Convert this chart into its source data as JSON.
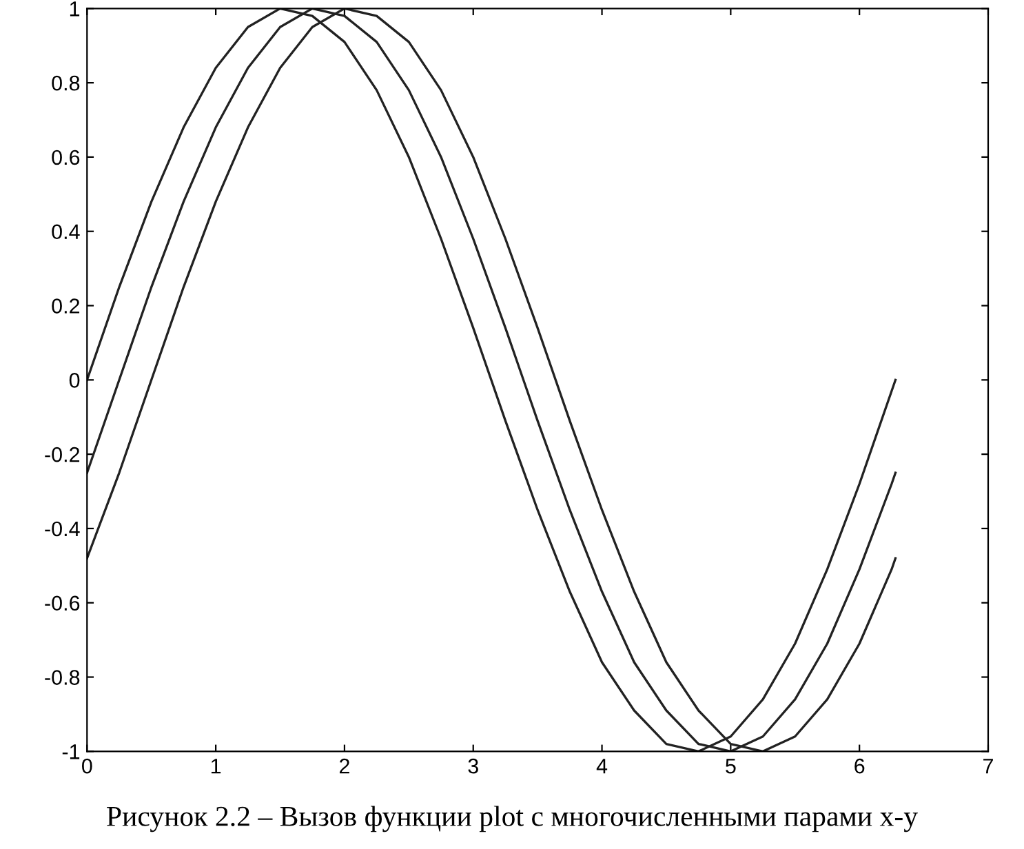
{
  "chart_data": {
    "type": "line",
    "x": [
      0,
      0.25,
      0.5,
      0.75,
      1.0,
      1.25,
      1.5,
      1.75,
      2.0,
      2.25,
      2.5,
      2.75,
      3.0,
      3.25,
      3.5,
      3.75,
      4.0,
      4.25,
      4.5,
      4.75,
      5.0,
      5.25,
      5.5,
      5.75,
      6.0,
      6.25,
      6.28
    ],
    "series": [
      {
        "color": "#222222",
        "values": [
          0,
          0.25,
          0.48,
          0.68,
          0.84,
          0.95,
          1.0,
          0.98,
          0.91,
          0.78,
          0.6,
          0.38,
          0.14,
          -0.11,
          -0.35,
          -0.57,
          -0.76,
          -0.89,
          -0.98,
          -1.0,
          -0.96,
          -0.86,
          -0.71,
          -0.51,
          -0.28,
          -0.03,
          0.0
        ]
      },
      {
        "color": "#222222",
        "values": [
          -0.25,
          0,
          0.25,
          0.48,
          0.68,
          0.84,
          0.95,
          1.0,
          0.98,
          0.91,
          0.78,
          0.6,
          0.38,
          0.14,
          -0.11,
          -0.35,
          -0.57,
          -0.76,
          -0.89,
          -0.98,
          -1.0,
          -0.96,
          -0.86,
          -0.71,
          -0.51,
          -0.28,
          -0.25
        ]
      },
      {
        "color": "#222222",
        "values": [
          -0.48,
          -0.25,
          0,
          0.25,
          0.48,
          0.68,
          0.84,
          0.95,
          1.0,
          0.98,
          0.91,
          0.78,
          0.6,
          0.38,
          0.14,
          -0.11,
          -0.35,
          -0.57,
          -0.76,
          -0.89,
          -0.98,
          -1.0,
          -0.96,
          -0.86,
          -0.71,
          -0.51,
          -0.48
        ]
      }
    ],
    "xlim": [
      0,
      7
    ],
    "ylim": [
      -1,
      1
    ],
    "xticks": [
      0,
      1,
      2,
      3,
      4,
      5,
      6,
      7
    ],
    "yticks": [
      -1,
      -0.8,
      -0.6,
      -0.4,
      -0.2,
      0,
      0.2,
      0.4,
      0.6,
      0.8,
      1
    ],
    "grid": false,
    "annotations": [
      "Рисунок 2.2 – Вызов функции plot с многочисленными парами x-y"
    ]
  }
}
